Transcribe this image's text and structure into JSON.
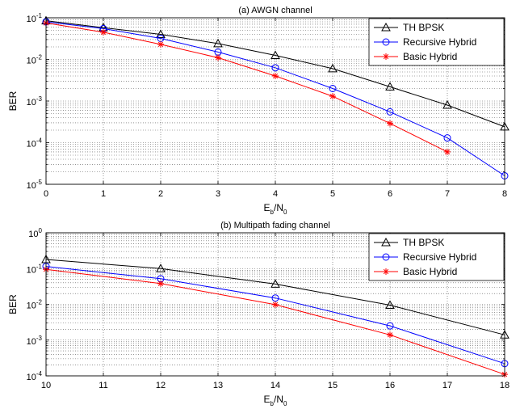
{
  "chart_data": [
    {
      "type": "line",
      "title": "(a) AWGN channel",
      "xlabel_main": "E",
      "xlabel_sub1": "b",
      "xlabel_mid": "/N",
      "xlabel_sub2": "0",
      "ylabel": "BER",
      "xlim": [
        0,
        8
      ],
      "ylim": [
        1e-05,
        0.1
      ],
      "yscale": "log",
      "grid": true,
      "legend_position": "top-right",
      "x_ticks": [
        "0",
        "1",
        "2",
        "3",
        "4",
        "5",
        "6",
        "7",
        "8"
      ],
      "y_ticks": [
        {
          "base": "10",
          "exp": "-5"
        },
        {
          "base": "10",
          "exp": "-4"
        },
        {
          "base": "10",
          "exp": "-3"
        },
        {
          "base": "10",
          "exp": "-2"
        },
        {
          "base": "10",
          "exp": "-1"
        }
      ],
      "series": [
        {
          "name": "TH BPSK",
          "color": "#000000",
          "marker": "triangle",
          "x": [
            0,
            1,
            2,
            3,
            4,
            5,
            6,
            7,
            8
          ],
          "y": [
            0.085,
            0.058,
            0.04,
            0.024,
            0.0125,
            0.006,
            0.0022,
            0.0008,
            0.00024
          ]
        },
        {
          "name": "Recursive Hybrid",
          "color": "#0000ff",
          "marker": "circle",
          "x": [
            0,
            1,
            2,
            3,
            4,
            5,
            6,
            7,
            8
          ],
          "y": [
            0.08,
            0.055,
            0.032,
            0.015,
            0.0063,
            0.002,
            0.00055,
            0.00013,
            1.6e-05
          ]
        },
        {
          "name": "Basic Hybrid",
          "color": "#ff0000",
          "marker": "star",
          "x": [
            0,
            1,
            2,
            3,
            4,
            5,
            6,
            7
          ],
          "y": [
            0.075,
            0.045,
            0.023,
            0.011,
            0.004,
            0.0013,
            0.00029,
            6e-05
          ]
        }
      ]
    },
    {
      "type": "line",
      "title": "(b) Multipath fading channel",
      "xlabel_main": "E",
      "xlabel_sub1": "b",
      "xlabel_mid": "/N",
      "xlabel_sub2": "0",
      "ylabel": "BER",
      "xlim": [
        10,
        18
      ],
      "ylim": [
        0.0001,
        1
      ],
      "yscale": "log",
      "grid": true,
      "legend_position": "top-right",
      "x_ticks": [
        "10",
        "11",
        "12",
        "13",
        "14",
        "15",
        "16",
        "17",
        "18"
      ],
      "y_ticks": [
        {
          "base": "10",
          "exp": "-4"
        },
        {
          "base": "10",
          "exp": "-3"
        },
        {
          "base": "10",
          "exp": "-2"
        },
        {
          "base": "10",
          "exp": "-1"
        },
        {
          "base": "10",
          "exp": "0"
        }
      ],
      "series": [
        {
          "name": "TH BPSK",
          "color": "#000000",
          "marker": "triangle",
          "x": [
            10,
            12,
            14,
            16,
            18
          ],
          "y": [
            0.18,
            0.1,
            0.037,
            0.0095,
            0.0014
          ]
        },
        {
          "name": "Recursive Hybrid",
          "color": "#0000ff",
          "marker": "circle",
          "x": [
            10,
            12,
            14,
            16,
            18
          ],
          "y": [
            0.115,
            0.052,
            0.015,
            0.0025,
            0.00022
          ]
        },
        {
          "name": "Basic Hybrid",
          "color": "#ff0000",
          "marker": "star",
          "x": [
            10,
            12,
            14,
            16,
            18
          ],
          "y": [
            0.095,
            0.038,
            0.0098,
            0.0014,
            0.00011
          ]
        }
      ]
    }
  ]
}
